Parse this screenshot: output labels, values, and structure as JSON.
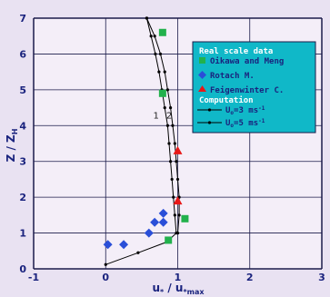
{
  "chart_data": {
    "type": "scatter",
    "xlabel": "u* / u*max",
    "ylabel": "Z / ZH",
    "xlim": [
      -1,
      3
    ],
    "ylim": [
      0,
      7
    ],
    "x_ticks": [
      "-1",
      "0",
      "1",
      "2",
      "3"
    ],
    "y_ticks": [
      "0",
      "1",
      "2",
      "3",
      "4",
      "5",
      "6",
      "7"
    ],
    "grid": true,
    "legend_placement": "top-right",
    "colors": {
      "plot_bg": "#f4eef8",
      "grid": "#1b1b4a",
      "legend_bg": "#10b8c8",
      "oikawa": "#22b14c",
      "rotach": "#2a4fd8",
      "feigenwinter": "#e81818",
      "curve": "#000000"
    },
    "legend": {
      "section_observed": "Real scale data",
      "oikawa": "Oikawa and Meng",
      "rotach": "Rotach M.",
      "feigenwinter": "Feigenwinter C.",
      "section_computed": "Computation",
      "curve1_prefix": "U",
      "curve1_sub": "o",
      "curve1_value": "=3 ms",
      "curve1_exp": "-1",
      "curve2_prefix": "U",
      "curve2_sub": "o",
      "curve2_value": "=5 ms",
      "curve2_exp": "-1"
    },
    "curve_labels": [
      "1",
      "2"
    ],
    "series": [
      {
        "name": "Oikawa and Meng",
        "marker": "square",
        "points": [
          [
            0.79,
            6.6
          ],
          [
            0.79,
            4.9
          ],
          [
            1.1,
            1.4
          ],
          [
            0.87,
            0.8
          ]
        ]
      },
      {
        "name": "Rotach M.",
        "marker": "diamond",
        "points": [
          [
            0.03,
            0.68
          ],
          [
            0.25,
            0.68
          ],
          [
            0.6,
            1.0
          ],
          [
            0.68,
            1.3
          ],
          [
            0.8,
            1.3
          ],
          [
            0.8,
            1.55
          ]
        ]
      },
      {
        "name": "Feigenwinter C.",
        "marker": "triangle",
        "points": [
          [
            1.0,
            3.3
          ],
          [
            1.0,
            1.9
          ]
        ]
      },
      {
        "name": "Uo=3 ms-1",
        "marker": "line",
        "points": [
          [
            0.57,
            7.0
          ],
          [
            0.63,
            6.5
          ],
          [
            0.69,
            6.0
          ],
          [
            0.74,
            5.5
          ],
          [
            0.78,
            5.0
          ],
          [
            0.82,
            4.5
          ],
          [
            0.86,
            4.0
          ],
          [
            0.88,
            3.5
          ],
          [
            0.9,
            3.0
          ],
          [
            0.92,
            2.5
          ],
          [
            0.94,
            2.0
          ],
          [
            0.96,
            1.5
          ],
          [
            0.98,
            1.0
          ],
          [
            0.85,
            0.75
          ],
          [
            0.45,
            0.45
          ],
          [
            0.0,
            0.12
          ]
        ]
      },
      {
        "name": "Uo=5 ms-1",
        "marker": "line",
        "points": [
          [
            0.57,
            7.0
          ],
          [
            0.68,
            6.5
          ],
          [
            0.76,
            6.0
          ],
          [
            0.82,
            5.5
          ],
          [
            0.86,
            5.0
          ],
          [
            0.9,
            4.5
          ],
          [
            0.93,
            4.0
          ],
          [
            0.96,
            3.5
          ],
          [
            0.98,
            3.0
          ],
          [
            1.0,
            2.5
          ],
          [
            1.02,
            2.0
          ],
          [
            1.02,
            1.5
          ],
          [
            1.0,
            1.0
          ]
        ]
      }
    ]
  }
}
